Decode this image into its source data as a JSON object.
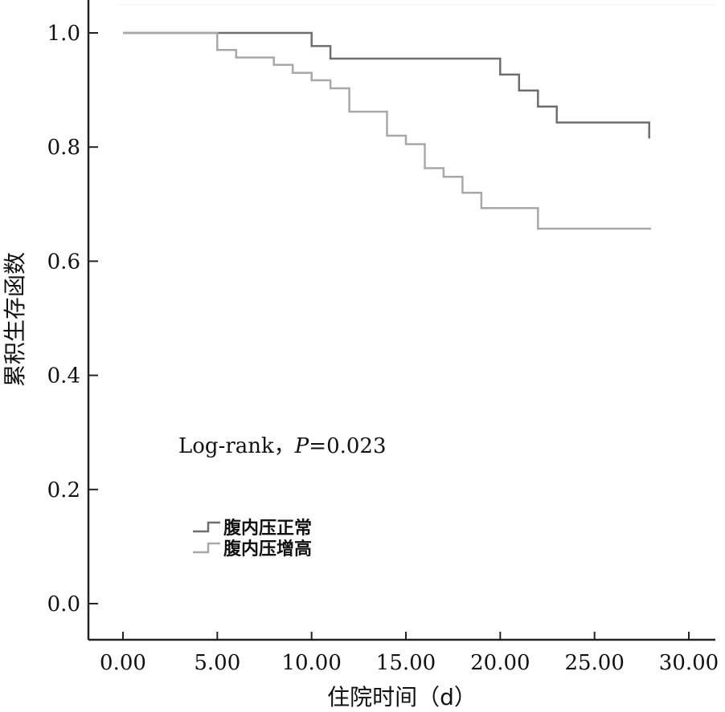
{
  "chart_data": {
    "type": "line",
    "step": true,
    "title": "",
    "xlabel": "住院时间（d）",
    "ylabel": "累积生存函数",
    "xlim": [
      -2,
      31.5
    ],
    "ylim": [
      -0.06,
      1.05
    ],
    "x_ticks": [
      0,
      5,
      10,
      15,
      20,
      25,
      30
    ],
    "x_tick_labels": [
      "0.00",
      "5.00",
      "10.00",
      "15.00",
      "20.00",
      "25.00",
      "30.00"
    ],
    "y_ticks": [
      0,
      0.2,
      0.4,
      0.6,
      0.8,
      1.0
    ],
    "y_tick_labels": [
      "0.0",
      "0.2",
      "0.4",
      "0.6",
      "0.8",
      "1.0"
    ],
    "annotation": {
      "prefix": "Log-rank，",
      "p_symbol": "P",
      "p_value": "=0.023"
    },
    "legend_position": "lower-left",
    "series": [
      {
        "name": "腹内压正常",
        "color": "#6e6e6e",
        "points": [
          [
            0,
            1.0
          ],
          [
            10.0,
            1.0
          ],
          [
            10.0,
            0.977
          ],
          [
            11.0,
            0.977
          ],
          [
            11.0,
            0.955
          ],
          [
            20.0,
            0.955
          ],
          [
            20.0,
            0.927
          ],
          [
            21.0,
            0.927
          ],
          [
            21.0,
            0.899
          ],
          [
            22.0,
            0.899
          ],
          [
            22.0,
            0.871
          ],
          [
            23.0,
            0.871
          ],
          [
            23.0,
            0.843
          ],
          [
            25.0,
            0.843
          ],
          [
            25.0,
            0.843
          ],
          [
            27.9,
            0.843
          ],
          [
            27.9,
            0.815
          ]
        ]
      },
      {
        "name": "腹内压增高",
        "color": "#a8a8a8",
        "points": [
          [
            0,
            1.0
          ],
          [
            5.0,
            1.0
          ],
          [
            5.0,
            0.97
          ],
          [
            6.0,
            0.97
          ],
          [
            6.0,
            0.957
          ],
          [
            8.0,
            0.957
          ],
          [
            8.0,
            0.944
          ],
          [
            9.0,
            0.944
          ],
          [
            9.0,
            0.93
          ],
          [
            10.0,
            0.93
          ],
          [
            10.0,
            0.917
          ],
          [
            11.0,
            0.917
          ],
          [
            11.0,
            0.903
          ],
          [
            12.0,
            0.903
          ],
          [
            12.0,
            0.862
          ],
          [
            14.0,
            0.862
          ],
          [
            14.0,
            0.82
          ],
          [
            15.0,
            0.82
          ],
          [
            15.0,
            0.805
          ],
          [
            16.0,
            0.805
          ],
          [
            16.0,
            0.763
          ],
          [
            17.0,
            0.763
          ],
          [
            17.0,
            0.748
          ],
          [
            18.0,
            0.748
          ],
          [
            18.0,
            0.72
          ],
          [
            19.0,
            0.72
          ],
          [
            19.0,
            0.693
          ],
          [
            22.0,
            0.693
          ],
          [
            22.0,
            0.657
          ],
          [
            28.0,
            0.657
          ]
        ]
      }
    ]
  }
}
